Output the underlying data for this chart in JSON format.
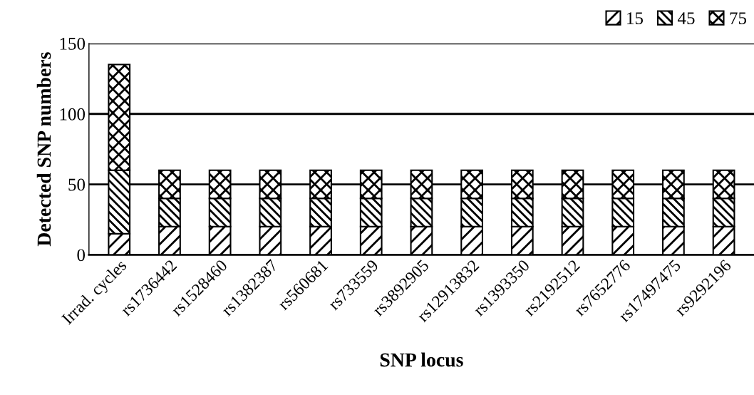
{
  "chart_data": {
    "type": "bar",
    "stacked": true,
    "xlabel": "SNP locus",
    "ylabel": "Detected SNP numbers",
    "categories": [
      "Irrad. cycles",
      "rs1736442",
      "rs1528460",
      "rs1382387",
      "rs560681",
      "rs733559",
      "rs3892905",
      "rs12913832",
      "rs1393350",
      "rs2192512",
      "rs7652776",
      "rs17497475",
      "rs9292196"
    ],
    "series": [
      {
        "name": "15",
        "color": "#000000",
        "values": [
          15,
          20,
          20,
          20,
          20,
          20,
          20,
          20,
          20,
          20,
          20,
          20,
          20
        ]
      },
      {
        "name": "45",
        "color": "#000000",
        "values": [
          45,
          20,
          20,
          20,
          20,
          20,
          20,
          20,
          20,
          20,
          20,
          20,
          20
        ]
      },
      {
        "name": "75",
        "color": "#000000",
        "values": [
          75,
          20,
          20,
          20,
          20,
          20,
          20,
          20,
          20,
          20,
          20,
          20,
          20
        ]
      }
    ],
    "ylim": [
      0,
      150
    ],
    "yticks": [
      0,
      50,
      100,
      150
    ],
    "grid": "y",
    "legend": "top right"
  }
}
